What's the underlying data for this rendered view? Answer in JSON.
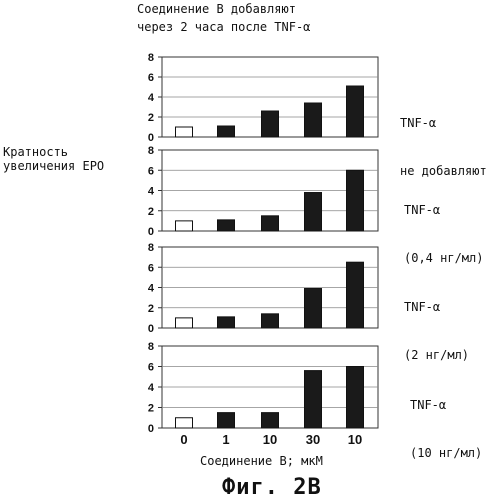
{
  "header": {
    "line1": "Соединение B добавляют",
    "line2": "через 2 часа после TNF-α"
  },
  "y_axis_label": {
    "line1": "Кратность",
    "line2": "увеличения EPO"
  },
  "x_axis_label": "Соединение B; мкМ",
  "caption": "Фиг. 2B",
  "chart_data": [
    {
      "type": "bar",
      "condition": [
        "TNF-α",
        "не добавляют"
      ],
      "categories": [
        "0",
        "1",
        "10",
        "30",
        "10"
      ],
      "values": [
        1.0,
        1.1,
        2.6,
        3.4,
        5.1
      ],
      "fills": [
        "white",
        "dark",
        "dark",
        "dark",
        "dark"
      ],
      "yticks": [
        "0",
        "2",
        "4",
        "6",
        "8"
      ],
      "ylim": [
        0,
        8
      ],
      "xlabel": "",
      "ylabel": ""
    },
    {
      "type": "bar",
      "condition": [
        "TNF-α",
        "(0,4 нг/мл)"
      ],
      "categories": [
        "0",
        "1",
        "10",
        "30",
        "10"
      ],
      "values": [
        1.0,
        1.1,
        1.5,
        3.8,
        6.0
      ],
      "fills": [
        "white",
        "dark",
        "dark",
        "dark",
        "dark"
      ],
      "yticks": [
        "0",
        "2",
        "4",
        "6",
        "8"
      ],
      "ylim": [
        0,
        8
      ],
      "xlabel": "",
      "ylabel": ""
    },
    {
      "type": "bar",
      "condition": [
        "TNF-α",
        "(2 нг/мл)"
      ],
      "categories": [
        "0",
        "1",
        "10",
        "30",
        "10"
      ],
      "values": [
        1.0,
        1.1,
        1.4,
        3.9,
        6.5
      ],
      "fills": [
        "white",
        "dark",
        "dark",
        "dark",
        "dark"
      ],
      "yticks": [
        "0",
        "2",
        "4",
        "6",
        "8"
      ],
      "ylim": [
        0,
        8
      ],
      "xlabel": "",
      "ylabel": ""
    },
    {
      "type": "bar",
      "condition": [
        "TNF-α",
        "(10 нг/мл)"
      ],
      "categories": [
        "0",
        "1",
        "10",
        "30",
        "10"
      ],
      "values": [
        1.0,
        1.5,
        1.5,
        5.6,
        6.0
      ],
      "fills": [
        "white",
        "dark",
        "dark",
        "dark",
        "dark"
      ],
      "yticks": [
        "0",
        "2",
        "4",
        "6",
        "8"
      ],
      "ylim": [
        0,
        8
      ],
      "xlabel": "",
      "ylabel": ""
    }
  ],
  "colors": {
    "bar_dark": "#1a1a1a",
    "bar_light": "#ffffff",
    "axis": "#333333"
  }
}
